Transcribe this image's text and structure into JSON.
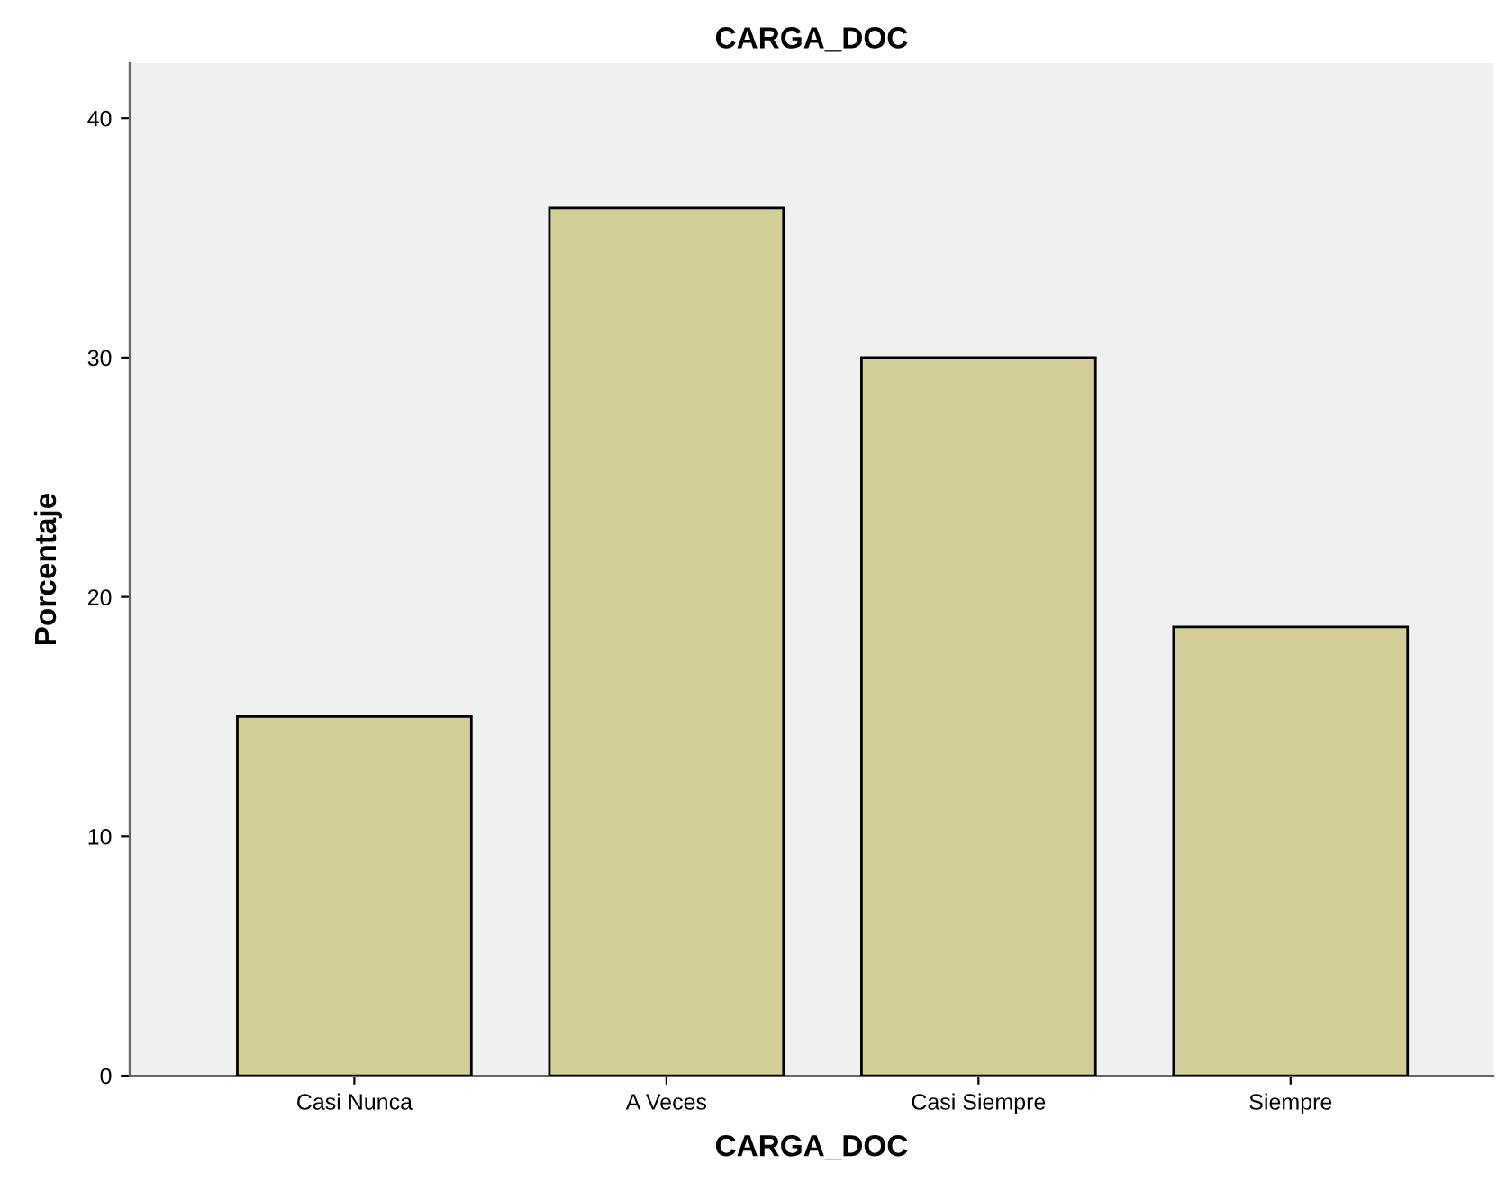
{
  "chart_data": {
    "type": "bar",
    "title": "CARGA_DOC",
    "xlabel": "CARGA_DOC",
    "ylabel": "Porcentaje",
    "categories": [
      "Casi Nunca",
      "A Veces",
      "Casi Siempre",
      "Siempre"
    ],
    "values": [
      15,
      36.25,
      30,
      18.75
    ],
    "color": "#d3ce97",
    "ylim": [
      0,
      42.3
    ],
    "yticks": [
      0,
      10,
      20,
      30,
      40
    ],
    "grid": false
  }
}
